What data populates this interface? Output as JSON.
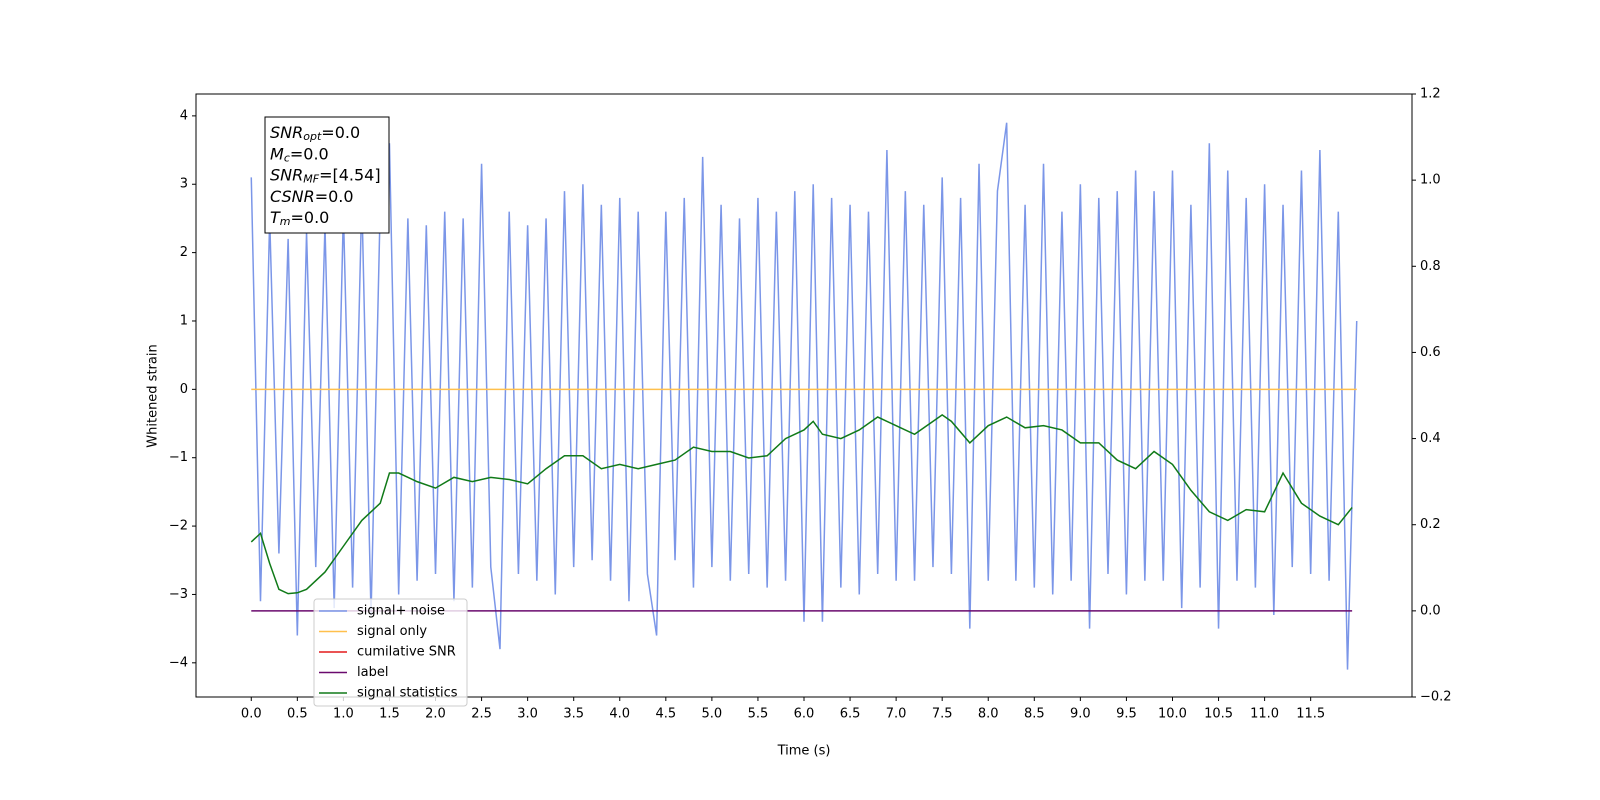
{
  "chart_data": {
    "type": "line",
    "xlabel": "Time (s)",
    "ylabel": "Whitened strain",
    "xlim": [
      -0.6,
      12.6
    ],
    "ylim": [
      -4.5,
      4.32
    ],
    "y2lim": [
      -0.2,
      1.2
    ],
    "xticks": [
      {
        "value": 0,
        "label": "0.0"
      },
      {
        "value": 0.5,
        "label": "0.5"
      },
      {
        "value": 1,
        "label": "1.0"
      },
      {
        "value": 1.5,
        "label": "1.5"
      },
      {
        "value": 2,
        "label": "2.0"
      },
      {
        "value": 2.5,
        "label": "2.5"
      },
      {
        "value": 3,
        "label": "3.0"
      },
      {
        "value": 3.5,
        "label": "3.5"
      },
      {
        "value": 4,
        "label": "4.0"
      },
      {
        "value": 4.5,
        "label": "4.5"
      },
      {
        "value": 5,
        "label": "5.0"
      },
      {
        "value": 5.5,
        "label": "5.5"
      },
      {
        "value": 6,
        "label": "6.0"
      },
      {
        "value": 6.5,
        "label": "6.5"
      },
      {
        "value": 7,
        "label": "7.0"
      },
      {
        "value": 7.5,
        "label": "7.5"
      },
      {
        "value": 8,
        "label": "8.0"
      },
      {
        "value": 8.5,
        "label": "8.5"
      },
      {
        "value": 9,
        "label": "9.0"
      },
      {
        "value": 9.5,
        "label": "9.5"
      },
      {
        "value": 10,
        "label": "10.0"
      },
      {
        "value": 10.5,
        "label": "10.5"
      },
      {
        "value": 11,
        "label": "11.0"
      },
      {
        "value": 11.5,
        "label": "11.5"
      }
    ],
    "yticks": [
      4,
      3,
      2,
      1,
      0,
      {
        "value": -1,
        "label": "−1"
      },
      {
        "value": -2,
        "label": "−2"
      },
      {
        "value": -3,
        "label": "−3"
      },
      {
        "value": -4,
        "label": "−4"
      }
    ],
    "y2ticks": [
      {
        "value": 1.2,
        "label": "1.2"
      },
      {
        "value": 1,
        "label": "1.0"
      },
      {
        "value": 0.8,
        "label": "0.8"
      },
      {
        "value": 0.6,
        "label": "0.6"
      },
      {
        "value": 0.4,
        "label": "0.4"
      },
      {
        "value": 0.2,
        "label": "0.2"
      },
      {
        "value": 0,
        "label": "0.0"
      },
      {
        "value": -0.2,
        "label": "−0.2"
      }
    ],
    "legend": "lower left",
    "annotations": [
      {
        "base": "SNR",
        "sub": "opt",
        "rest": "=0.0"
      },
      {
        "base": "M",
        "sub": "c",
        "rest": "=0.0"
      },
      {
        "base": "SNR",
        "sub": "MF",
        "rest": "=[4.54]"
      },
      {
        "base": "CSNR",
        "rest": "=0.0"
      },
      {
        "base": "T",
        "sub": "m",
        "rest": "=0.0"
      }
    ],
    "series": [
      {
        "name": "signal+ noise",
        "color": "#7b96e8",
        "x": [
          0,
          0.1,
          0.2,
          0.3,
          0.4,
          0.5,
          0.6,
          0.7,
          0.8,
          0.9,
          1,
          1.1,
          1.2,
          1.3,
          1.4,
          1.5,
          1.6,
          1.7,
          1.8,
          1.9,
          2,
          2.1,
          2.2,
          2.3,
          2.4,
          2.5,
          2.6,
          2.7,
          2.8,
          2.9,
          3,
          3.1,
          3.2,
          3.3,
          3.4,
          3.5,
          3.6,
          3.7,
          3.8,
          3.9,
          4,
          4.1,
          4.2,
          4.3,
          4.4,
          4.5,
          4.6,
          4.7,
          4.8,
          4.9,
          5,
          5.1,
          5.2,
          5.3,
          5.4,
          5.5,
          5.6,
          5.7,
          5.8,
          5.9,
          6,
          6.1,
          6.2,
          6.3,
          6.4,
          6.5,
          6.6,
          6.7,
          6.8,
          6.9,
          7,
          7.1,
          7.2,
          7.3,
          7.4,
          7.5,
          7.6,
          7.7,
          7.8,
          7.9,
          8,
          8.1,
          8.2,
          8.3,
          8.4,
          8.5,
          8.6,
          8.7,
          8.8,
          8.9,
          9,
          9.1,
          9.2,
          9.3,
          9.4,
          9.5,
          9.6,
          9.7,
          9.8,
          9.9,
          10,
          10.1,
          10.2,
          10.3,
          10.4,
          10.5,
          10.6,
          10.7,
          10.8,
          10.9,
          11,
          11.1,
          11.2,
          11.3,
          11.4,
          11.5,
          11.6,
          11.7,
          11.8,
          11.9,
          12
        ],
        "values": [
          3.1,
          -3.1,
          2.5,
          -2.4,
          2.2,
          -3.6,
          2.3,
          -2.6,
          2.4,
          -3.2,
          2.6,
          -2.9,
          2.8,
          -3.3,
          2.7,
          3.6,
          -3.0,
          2.5,
          -2.8,
          2.4,
          -2.7,
          2.6,
          -3.1,
          2.5,
          -2.9,
          3.3,
          -2.6,
          -3.8,
          2.6,
          -2.7,
          2.4,
          -2.8,
          2.5,
          -3.0,
          2.9,
          -2.6,
          3.0,
          -2.5,
          2.7,
          -2.8,
          2.8,
          -3.1,
          2.6,
          -2.7,
          -3.6,
          2.6,
          -2.5,
          2.8,
          -2.9,
          3.4,
          -2.6,
          2.7,
          -2.8,
          2.5,
          -2.7,
          2.8,
          -2.9,
          2.6,
          -2.8,
          2.9,
          -3.4,
          3.0,
          -3.4,
          2.8,
          -2.9,
          2.7,
          -3.0,
          2.6,
          -2.7,
          3.5,
          -2.8,
          2.9,
          -2.8,
          2.7,
          -2.6,
          3.1,
          -2.7,
          2.8,
          -3.5,
          3.3,
          -2.8,
          2.9,
          3.9,
          -2.8,
          2.7,
          -2.9,
          3.3,
          -3.0,
          2.6,
          -2.8,
          3.0,
          -3.5,
          2.8,
          -2.7,
          2.9,
          -3.0,
          3.2,
          -2.8,
          2.9,
          -2.8,
          3.2,
          -3.2,
          2.7,
          -2.9,
          3.6,
          -3.5,
          3.2,
          -2.8,
          2.8,
          -2.9,
          3.0,
          -3.3,
          2.7,
          -2.6,
          3.2,
          -2.7,
          3.5,
          -2.8,
          2.6,
          -4.1,
          1.0
        ]
      },
      {
        "name": "signal only",
        "color": "#ffc04d",
        "x": [
          0,
          12
        ],
        "values": [
          0,
          0
        ]
      },
      {
        "name": "cumilative SNR",
        "color": "#e41a1c",
        "x": [],
        "values": []
      },
      {
        "name": "label",
        "color": "#6a0a6e",
        "axis": "y2",
        "x": [
          0,
          11.95
        ],
        "values": [
          0,
          0
        ]
      },
      {
        "name": "signal statistics",
        "color": "#107a18",
        "axis": "y2",
        "x": [
          0,
          0.1,
          0.2,
          0.3,
          0.4,
          0.5,
          0.6,
          0.8,
          1,
          1.2,
          1.4,
          1.5,
          1.6,
          1.7,
          1.8,
          2,
          2.2,
          2.4,
          2.6,
          2.8,
          3,
          3.2,
          3.4,
          3.6,
          3.8,
          4,
          4.2,
          4.4,
          4.6,
          4.8,
          5,
          5.2,
          5.4,
          5.6,
          5.8,
          6,
          6.1,
          6.2,
          6.4,
          6.6,
          6.8,
          7,
          7.2,
          7.4,
          7.5,
          7.6,
          7.8,
          8,
          8.2,
          8.4,
          8.6,
          8.8,
          9,
          9.2,
          9.4,
          9.6,
          9.8,
          10,
          10.2,
          10.4,
          10.6,
          10.8,
          11,
          11.2,
          11.4,
          11.6,
          11.8,
          11.95
        ],
        "values": [
          0.16,
          0.18,
          0.11,
          0.05,
          0.04,
          0.042,
          0.05,
          0.09,
          0.15,
          0.21,
          0.25,
          0.32,
          0.32,
          0.31,
          0.3,
          0.285,
          0.31,
          0.3,
          0.31,
          0.305,
          0.295,
          0.33,
          0.36,
          0.36,
          0.33,
          0.34,
          0.33,
          0.34,
          0.35,
          0.38,
          0.37,
          0.37,
          0.355,
          0.36,
          0.4,
          0.42,
          0.44,
          0.41,
          0.4,
          0.42,
          0.45,
          0.43,
          0.41,
          0.44,
          0.455,
          0.44,
          0.39,
          0.43,
          0.45,
          0.425,
          0.43,
          0.42,
          0.39,
          0.39,
          0.35,
          0.33,
          0.37,
          0.34,
          0.28,
          0.23,
          0.21,
          0.235,
          0.23,
          0.32,
          0.25,
          0.22,
          0.2,
          0.24
        ]
      }
    ]
  }
}
